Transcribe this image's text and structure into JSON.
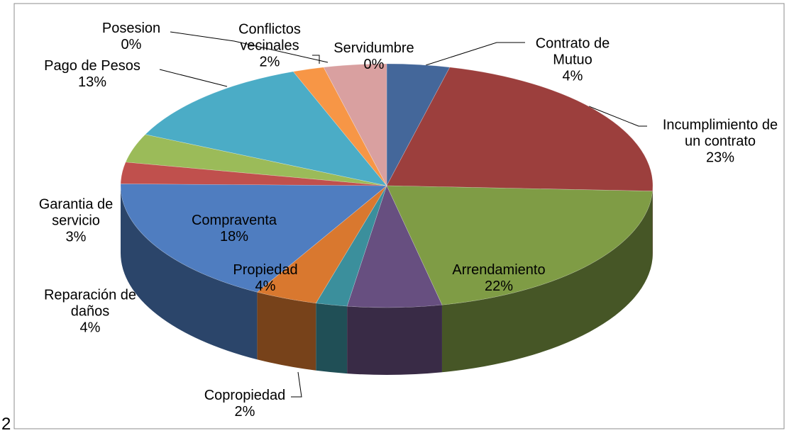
{
  "chart_data": {
    "type": "pie",
    "footnote": "2",
    "categories": [
      "Contrato de Mutuo",
      "Incumplimiento de un contrato",
      "Arrendamiento",
      null,
      "Copropiedad",
      "Propiedad",
      "Compraventa",
      "Garantia de servicio",
      "Reparación de daños",
      "Posesion",
      "Pago de Pesos",
      "Conflictos vecinales",
      "Servidumbre",
      null
    ],
    "values": [
      4,
      23,
      22,
      6,
      2,
      4,
      18,
      3,
      4,
      0,
      13,
      2,
      0,
      4
    ],
    "value_labels": [
      "4%",
      "23%",
      "22%",
      null,
      "2%",
      "4%",
      "18%",
      "3%",
      "4%",
      "0%",
      "13%",
      "2%",
      "0%",
      null
    ],
    "colors": [
      "#44679a",
      "#9c3f3d",
      "#7f9c45",
      "#674f80",
      "#3b8f9c",
      "#d9782f",
      "#4f7dc0",
      "#c0504d",
      "#9bbb59",
      "#8064a2",
      "#4bacc6",
      "#f79646",
      "#a5b8d8",
      "#d9a0a0"
    ]
  }
}
